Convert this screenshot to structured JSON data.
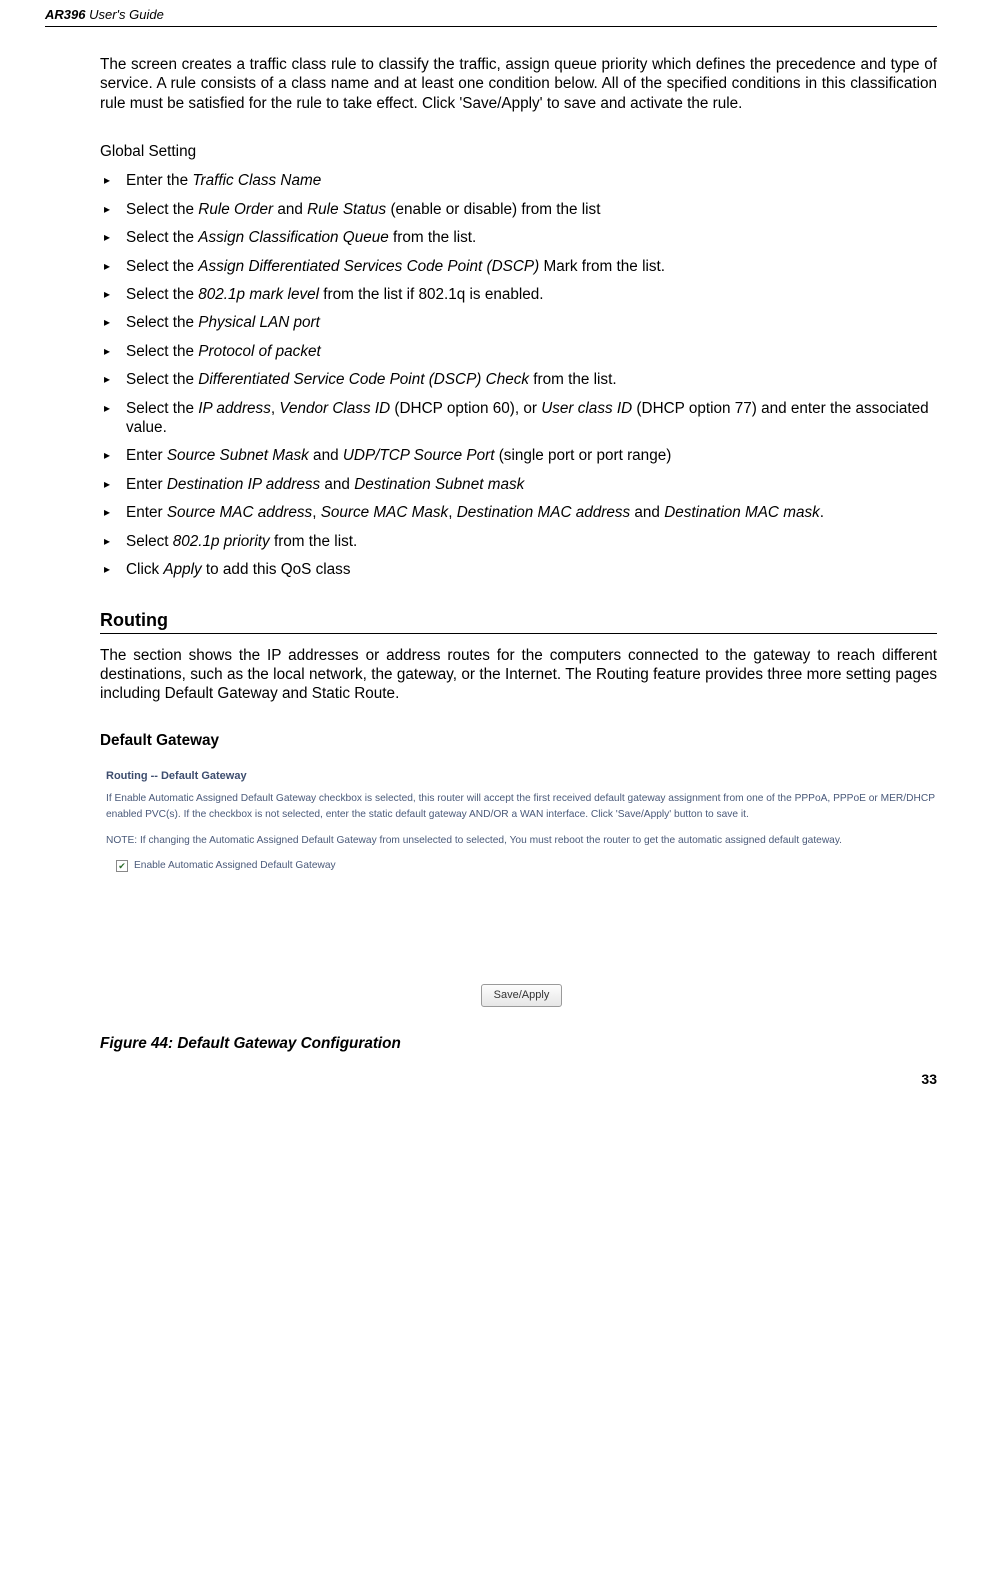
{
  "header": {
    "product": "AR396",
    "suffix": " User's Guide"
  },
  "intro": "The screen creates a traffic class rule to classify the traffic, assign queue priority which defines the precedence and type of service. A rule consists of a class name and at least one condition below. All of the specified conditions in this classification rule must be satisfied for the rule to take effect. Click 'Save/Apply' to save and activate the rule.",
  "globalSettingLabel": "Global Setting",
  "bullets": [
    {
      "html": "Enter the <span class=\"italic\">Traffic Class Name</span>"
    },
    {
      "html": "Select the <span class=\"italic\">Rule Order</span> and <span class=\"italic\">Rule Status</span> (enable or disable) from the list"
    },
    {
      "html": "Select the <span class=\"italic\">Assign Classification Queue</span> from the list."
    },
    {
      "html": "Select the <span class=\"italic\">Assign Differentiated Services Code Point (DSCP)</span> Mark from the list."
    },
    {
      "html": "Select the <span class=\"italic\">802.1p mark level</span> from the list if 802.1q is enabled."
    },
    {
      "html": "Select the <span class=\"italic\">Physical LAN port</span>"
    },
    {
      "html": "Select the <span class=\"italic\">Protocol of packet</span>"
    },
    {
      "html": "Select the <span class=\"italic\">Differentiated Service Code Point (DSCP) Check</span> from the list."
    },
    {
      "html": "Select the <span class=\"italic\">IP address</span>, <span class=\"italic\">Vendor Class ID</span> (DHCP option 60), or <span class=\"italic\">User class ID</span> (DHCP option 77) and enter the associated value."
    },
    {
      "html": "Enter <span class=\"italic\">Source Subnet Mask</span> and <span class=\"italic\">UDP/TCP Source Port</span> (single port or port range)"
    },
    {
      "html": "Enter <span class=\"italic\">Destination IP address</span> and <span class=\"italic\">Destination Subnet mask</span>"
    },
    {
      "html": "Enter <span class=\"italic\">Source MAC address</span>, <span class=\"italic\">Source MAC Mask</span>, <span class=\"italic\">Destination MAC address</span> and <span class=\"italic\">Destination MAC mask</span>."
    },
    {
      "html": "Select <span class=\"italic\">802.1p priority</span> from the list."
    },
    {
      "html": "Click <span class=\"italic\">Apply</span> to add this QoS class"
    }
  ],
  "routing": {
    "title": "Routing",
    "body": "The section shows the IP addresses or address routes for the computers connected to the gateway to reach different destinations, such as the local network, the gateway, or the Internet. The Routing feature provides three more setting pages including Default Gateway and Static Route."
  },
  "defaultGateway": {
    "heading": "Default Gateway",
    "panelTitle": "Routing -- Default Gateway",
    "line1": "If Enable Automatic Assigned Default Gateway checkbox is selected, this router will accept the first received default gateway assignment from one of the PPPoA, PPPoE or MER/DHCP enabled PVC(s). If the checkbox is not selected, enter the static default gateway AND/OR a WAN interface. Click 'Save/Apply' button to save it.",
    "line2": "NOTE: If changing the Automatic Assigned Default Gateway from unselected to selected, You must reboot the router to get the automatic assigned default gateway.",
    "checkboxLabel": "Enable Automatic Assigned Default Gateway",
    "buttonLabel": "Save/Apply"
  },
  "figcap": "Figure 44: Default Gateway Configuration",
  "pagenum": "33"
}
